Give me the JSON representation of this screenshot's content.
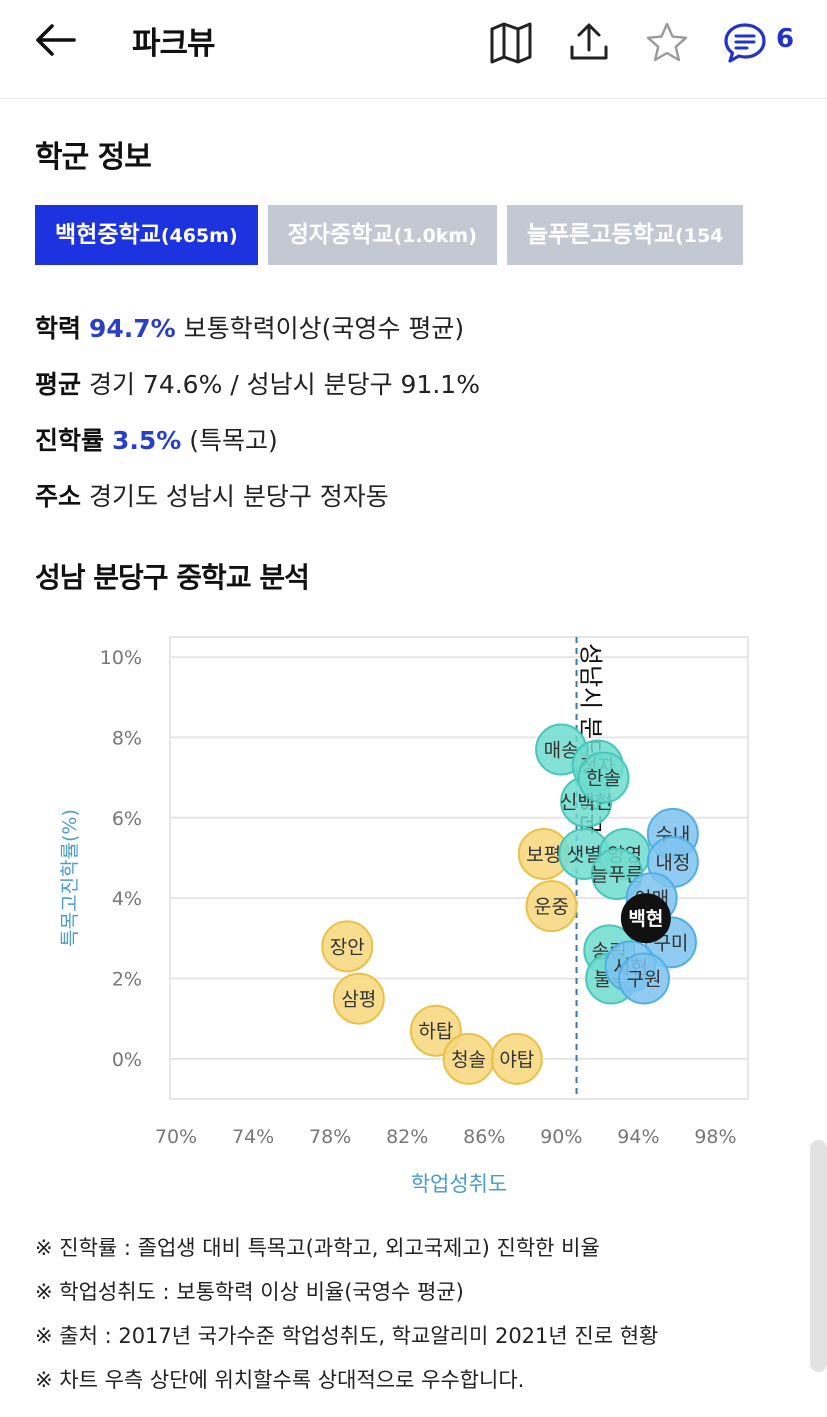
{
  "header": {
    "title": "파크뷰",
    "comment_count": "6",
    "icons": [
      "back-arrow-icon",
      "map-icon",
      "share-icon",
      "star-icon",
      "comment-icon"
    ]
  },
  "school_info": {
    "section_title": "학군 정보",
    "tabs": [
      {
        "name": "백현중학교",
        "distance": "(465m)",
        "active": true
      },
      {
        "name": "정자중학교",
        "distance": "(1.0km)",
        "active": false
      },
      {
        "name": "늘푸른고등학교",
        "distance": "(154",
        "active": false
      }
    ],
    "rows": [
      {
        "label": "학력",
        "highlight": "94.7%",
        "text": "보통학력이상(국영수 평균)"
      },
      {
        "label": "평균",
        "highlight": "",
        "text": "경기 74.6% / 성남시 분당구 91.1%"
      },
      {
        "label": "진학률",
        "highlight": "3.5%",
        "text": "(특목고)"
      },
      {
        "label": "주소",
        "highlight": "",
        "text": "경기도 성남시 분당구 정자동"
      }
    ]
  },
  "analysis": {
    "section_title": "성남 분당구 중학교 분석",
    "notes": [
      "※ 진학률 : 졸업생 대비 특목고(과학고, 외고국제고) 진학한 비율",
      "※ 학업성취도 : 보통학력 이상 비율(국영수 평균)",
      "※ 출처 : 2017년 국가수준 학업성취도, 학교알리미 2021년 진로 현황",
      "※ 차트 우측 상단에 위치할수록 상대적으로 우수합니다."
    ]
  },
  "chart_data": {
    "type": "scatter",
    "xlabel": "학업성취도",
    "ylabel": "특목고진학률(%)",
    "xlim": [
      70,
      100
    ],
    "ylim": [
      -1,
      10.5
    ],
    "x_ticks": [
      "70%",
      "74%",
      "78%",
      "82%",
      "86%",
      "90%",
      "94%",
      "98%"
    ],
    "x_tick_values": [
      70,
      74,
      78,
      82,
      86,
      90,
      94,
      98
    ],
    "y_ticks": [
      "0%",
      "2%",
      "4%",
      "6%",
      "8%",
      "10%"
    ],
    "y_tick_values": [
      0,
      2,
      4,
      6,
      8,
      10
    ],
    "grid": true,
    "reference_line": {
      "x": 91.1,
      "label": "성남시 분당구 평균"
    },
    "colors": {
      "yellow": "#f7d77a",
      "teal": "#6fdccf",
      "blue": "#7cc3ef",
      "highlight": "#111111",
      "axis_label": "#4a9bd1"
    },
    "points": [
      {
        "label": "장안",
        "x": 79.2,
        "y": 2.8,
        "group": "yellow"
      },
      {
        "label": "삼평",
        "x": 79.8,
        "y": 1.5,
        "group": "yellow"
      },
      {
        "label": "하탑",
        "x": 83.8,
        "y": 0.7,
        "group": "yellow"
      },
      {
        "label": "청솔",
        "x": 85.5,
        "y": 0.0,
        "group": "yellow"
      },
      {
        "label": "야탑",
        "x": 88.0,
        "y": 0.0,
        "group": "yellow"
      },
      {
        "label": "보평",
        "x": 89.4,
        "y": 5.1,
        "group": "yellow"
      },
      {
        "label": "운중",
        "x": 89.8,
        "y": 3.8,
        "group": "yellow"
      },
      {
        "label": "매송",
        "x": 90.3,
        "y": 7.7,
        "group": "teal"
      },
      {
        "label": "샛별",
        "x": 91.5,
        "y": 5.1,
        "group": "teal"
      },
      {
        "label": "신백현",
        "x": 91.6,
        "y": 6.4,
        "group": "teal"
      },
      {
        "label": "정자",
        "x": 92.2,
        "y": 7.3,
        "group": "teal"
      },
      {
        "label": "한솔",
        "x": 92.5,
        "y": 7.0,
        "group": "teal"
      },
      {
        "label": "양영",
        "x": 93.6,
        "y": 5.1,
        "group": "teal"
      },
      {
        "label": "늘푸른",
        "x": 93.2,
        "y": 4.6,
        "group": "teal"
      },
      {
        "label": "송림",
        "x": 92.8,
        "y": 2.7,
        "group": "teal"
      },
      {
        "label": "불곡",
        "x": 92.9,
        "y": 2.0,
        "group": "teal"
      },
      {
        "label": "수내",
        "x": 96.1,
        "y": 5.6,
        "group": "blue"
      },
      {
        "label": "내정",
        "x": 96.1,
        "y": 4.9,
        "group": "blue"
      },
      {
        "label": "이매",
        "x": 95.0,
        "y": 4.0,
        "group": "blue"
      },
      {
        "label": "구미",
        "x": 96.0,
        "y": 2.9,
        "group": "blue"
      },
      {
        "label": "서현",
        "x": 93.9,
        "y": 2.3,
        "group": "blue"
      },
      {
        "label": "구원",
        "x": 94.6,
        "y": 2.0,
        "group": "blue"
      },
      {
        "label": "백현",
        "x": 94.7,
        "y": 3.5,
        "group": "highlight"
      }
    ]
  }
}
